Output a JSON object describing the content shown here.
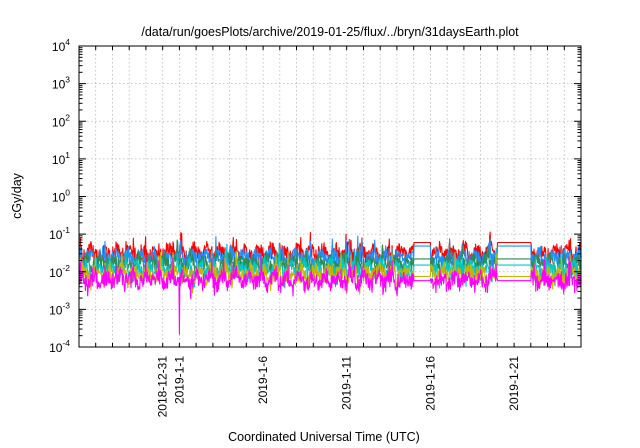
{
  "chart_data": {
    "type": "line",
    "title": "/data/run/goesPlots/archive/2019-01-25/flux/../bryn/31daysEarth.plot",
    "xlabel": "Coordinated Universal Time (UTC)",
    "ylabel": "cGy/day",
    "yscale": "log",
    "ylim": [
      0.0001,
      10000
    ],
    "y_ticks": [
      {
        "base": "10",
        "exp": "-4",
        "value": 0.0001
      },
      {
        "base": "10",
        "exp": "-3",
        "value": 0.001
      },
      {
        "base": "10",
        "exp": "-2",
        "value": 0.01
      },
      {
        "base": "10",
        "exp": "-1",
        "value": 0.1
      },
      {
        "base": "10",
        "exp": "0",
        "value": 1
      },
      {
        "base": "10",
        "exp": "1",
        "value": 10
      },
      {
        "base": "10",
        "exp": "2",
        "value": 100
      },
      {
        "base": "10",
        "exp": "3",
        "value": 1000
      },
      {
        "base": "10",
        "exp": "4",
        "value": 10000
      }
    ],
    "xlim": [
      "2018-12-26",
      "2019-01-25"
    ],
    "x_tick_labels": [
      {
        "label": "2018-12-31",
        "date": "2018-12-31"
      },
      {
        "label": "2019-1-1",
        "date": "2019-01-01"
      },
      {
        "label": "2019-1-6",
        "date": "2019-01-06"
      },
      {
        "label": "2019-1-11",
        "date": "2019-01-11"
      },
      {
        "label": "2019-1-16",
        "date": "2019-01-16"
      },
      {
        "label": "2019-1-21",
        "date": "2019-01-21"
      }
    ],
    "grid": true,
    "legend": "none",
    "series": [
      {
        "color": "#ff0000",
        "base": 0.033,
        "gap_level": 0.06
      },
      {
        "color": "#1e90ff",
        "base": 0.024,
        "gap_level": 0.048
      },
      {
        "color": "#2e8b57",
        "base": 0.017,
        "gap_level": 0.022
      },
      {
        "color": "#00c8c8",
        "base": 0.012,
        "gap_level": 0.015
      },
      {
        "color": "#c8b400",
        "base": 0.009,
        "gap_level": 0.0075
      },
      {
        "color": "#ff00ff",
        "base": 0.0065,
        "gap_level": 0.0058
      }
    ],
    "flat_segments": [
      {
        "start": "2019-01-15",
        "end": "2019-01-16"
      },
      {
        "start": "2019-01-20",
        "end": "2019-01-22"
      }
    ],
    "min_spike": {
      "date": "2019-01-01",
      "value": 0.00022
    }
  }
}
